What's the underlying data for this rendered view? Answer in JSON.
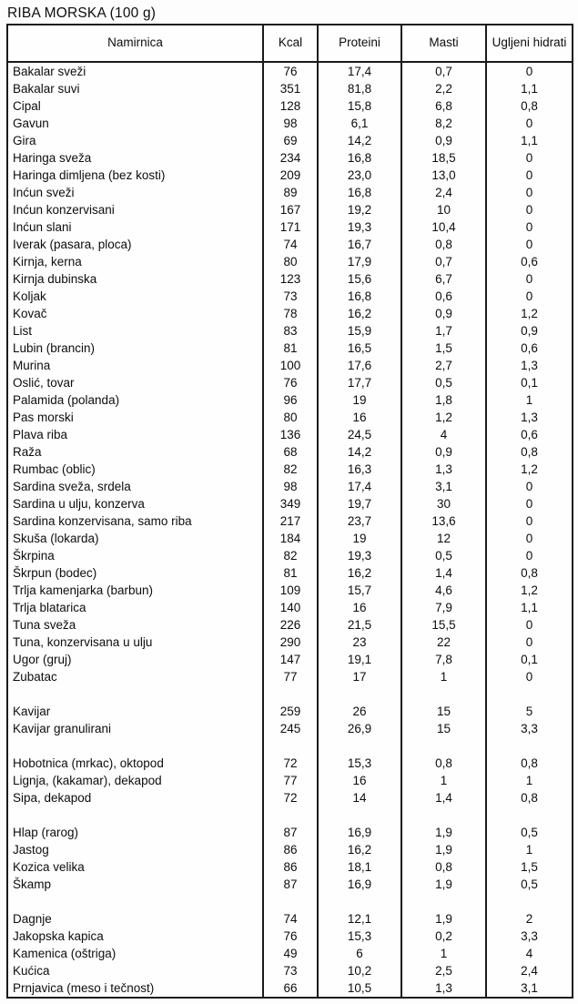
{
  "title": "RIBA MORSKA (100 g)",
  "table": {
    "columns": [
      "Namirnica",
      "Kcal",
      "Proteini",
      "Masti",
      "Ugljeni hidrati"
    ],
    "rows": [
      [
        "Bakalar sveži",
        "76",
        "17,4",
        "0,7",
        "0"
      ],
      [
        "Bakalar suvi",
        "351",
        "81,8",
        "2,2",
        "1,1"
      ],
      [
        "Cipal",
        "128",
        "15,8",
        "6,8",
        "0,8"
      ],
      [
        "Gavun",
        "98",
        "6,1",
        "8,2",
        "0"
      ],
      [
        "Gira",
        "69",
        "14,2",
        "0,9",
        "1,1"
      ],
      [
        "Haringa sveža",
        "234",
        "16,8",
        "18,5",
        "0"
      ],
      [
        "Haringa dimljena (bez kosti)",
        "209",
        "23,0",
        "13,0",
        "0"
      ],
      [
        "Inćun sveži",
        "89",
        "16,8",
        "2,4",
        "0"
      ],
      [
        "Inćun konzervisani",
        "167",
        "19,2",
        "10",
        "0"
      ],
      [
        "Inćun slani",
        "171",
        "19,3",
        "10,4",
        "0"
      ],
      [
        "Iverak (pasara, ploca)",
        "74",
        "16,7",
        "0,8",
        "0"
      ],
      [
        "Kirnja, kerna",
        "80",
        "17,9",
        "0,7",
        "0,6"
      ],
      [
        "Kirnja dubinska",
        "123",
        "15,6",
        "6,7",
        "0"
      ],
      [
        "Koljak",
        "73",
        "16,8",
        "0,6",
        "0"
      ],
      [
        "Kovač",
        "78",
        "16,2",
        "0,9",
        "1,2"
      ],
      [
        "List",
        "83",
        "15,9",
        "1,7",
        "0,9"
      ],
      [
        "Lubin (brancin)",
        "81",
        "16,5",
        "1,5",
        "0,6"
      ],
      [
        "Murina",
        "100",
        "17,6",
        "2,7",
        "1,3"
      ],
      [
        "Oslić, tovar",
        "76",
        "17,7",
        "0,5",
        "0,1"
      ],
      [
        "Palamida (polanda)",
        "96",
        "19",
        "1,8",
        "1"
      ],
      [
        "Pas morski",
        "80",
        "16",
        "1,2",
        "1,3"
      ],
      [
        "Plava riba",
        "136",
        "24,5",
        "4",
        "0,6"
      ],
      [
        "Raža",
        "68",
        "14,2",
        "0,9",
        "0,8"
      ],
      [
        "Rumbac (oblic)",
        "82",
        "16,3",
        "1,3",
        "1,2"
      ],
      [
        "Sardina sveža, srdela",
        "98",
        "17,4",
        "3,1",
        "0"
      ],
      [
        "Sardina u ulju, konzerva",
        "349",
        "19,7",
        "30",
        "0"
      ],
      [
        "Sardina konzervisana, samo riba",
        "217",
        "23,7",
        "13,6",
        "0"
      ],
      [
        "Skuša (lokarda)",
        "184",
        "19",
        "12",
        "0"
      ],
      [
        "Škrpina",
        "82",
        "19,3",
        "0,5",
        "0"
      ],
      [
        "Škrpun (bodec)",
        "81",
        "16,2",
        "1,4",
        "0,8"
      ],
      [
        "Trlja kamenjarka (barbun)",
        "109",
        "15,7",
        "4,6",
        "1,2"
      ],
      [
        "Trlja blatarica",
        "140",
        "16",
        "7,9",
        "1,1"
      ],
      [
        "Tuna sveža",
        "226",
        "21,5",
        "15,5",
        "0"
      ],
      [
        "Tuna, konzervisana u ulju",
        "290",
        "23",
        "22",
        "0"
      ],
      [
        "Ugor (gruj)",
        "147",
        "19,1",
        "7,8",
        "0,1"
      ],
      [
        "Zubatac",
        "77",
        "17",
        "1",
        "0"
      ],
      [
        "",
        "",
        "",
        "",
        ""
      ],
      [
        "Kavijar",
        "259",
        "26",
        "15",
        "5"
      ],
      [
        "Kavijar granulirani",
        "245",
        "26,9",
        "15",
        "3,3"
      ],
      [
        "",
        "",
        "",
        "",
        ""
      ],
      [
        "Hobotnica (mrkac), oktopod",
        "72",
        "15,3",
        "0,8",
        "0,8"
      ],
      [
        "Lignja, (kakamar), dekapod",
        "77",
        "16",
        "1",
        "1"
      ],
      [
        "Sipa, dekapod",
        "72",
        "14",
        "1,4",
        "0,8"
      ],
      [
        "",
        "",
        "",
        "",
        ""
      ],
      [
        "Hlap (rarog)",
        "87",
        "16,9",
        "1,9",
        "0,5"
      ],
      [
        "Jastog",
        "86",
        "16,2",
        "1,9",
        "1"
      ],
      [
        "Kozica velika",
        "86",
        "18,1",
        "0,8",
        "1,5"
      ],
      [
        "Škamp",
        "87",
        "16,9",
        "1,9",
        "0,5"
      ],
      [
        "",
        "",
        "",
        "",
        ""
      ],
      [
        "Dagnje",
        "74",
        "12,1",
        "1,9",
        "2"
      ],
      [
        "Jakopska kapica",
        "76",
        "15,3",
        "0,2",
        "3,3"
      ],
      [
        "Kamenica (oštriga)",
        "49",
        "6",
        "1",
        "4"
      ],
      [
        "Kućica",
        "73",
        "10,2",
        "2,5",
        "2,4"
      ],
      [
        "Prnjavica (meso i tečnost)",
        "66",
        "10,5",
        "1,3",
        "3,1"
      ]
    ]
  }
}
